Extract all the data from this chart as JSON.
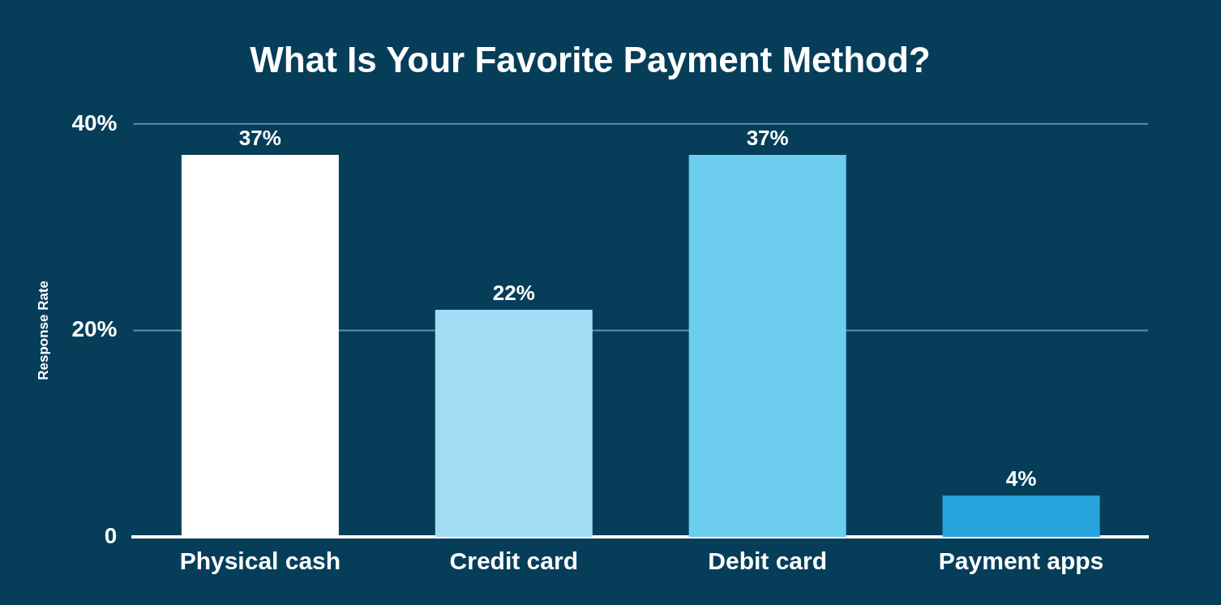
{
  "chart_data": {
    "type": "bar",
    "title": "What Is Your Favorite Payment Method?",
    "ylabel": "Response Rate",
    "categories": [
      "Physical cash",
      "Credit card",
      "Debit card",
      "Payment apps"
    ],
    "values": [
      37,
      22,
      37,
      4
    ],
    "colors": [
      "#ffffff",
      "#a3dcf5",
      "#6dcdee",
      "#27a4dc"
    ],
    "value_labels": [
      "37%",
      "22%",
      "37%",
      "4%"
    ],
    "ylim": [
      0,
      40
    ],
    "yticks": [
      {
        "value": 0,
        "label": "0"
      },
      {
        "value": 20,
        "label": "20%"
      },
      {
        "value": 40,
        "label": "40%"
      }
    ],
    "ref_lines": [
      {
        "axis": "y",
        "value": 20,
        "color": "#5d90a8"
      },
      {
        "axis": "y",
        "value": 40,
        "color": "#5d90a8"
      }
    ],
    "legend": false
  }
}
